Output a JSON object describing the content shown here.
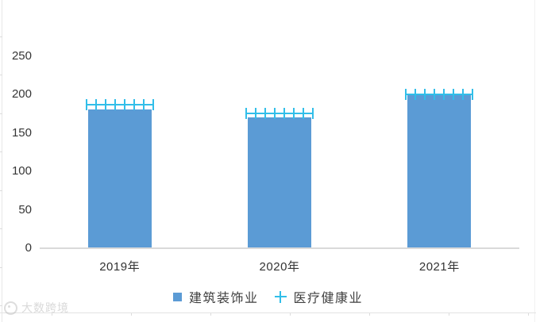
{
  "chart_data": {
    "type": "bar",
    "title": "",
    "xlabel": "",
    "ylabel": "",
    "categories": [
      "2019年",
      "2020年",
      "2021年"
    ],
    "series": [
      {
        "name": "建筑装饰业",
        "type": "bar",
        "marker": "square",
        "color": "#5b9bd5",
        "values": [
          180,
          170,
          199
        ]
      },
      {
        "name": "医疗健康业",
        "type": "scatter",
        "marker": "plus",
        "color": "#31bee9",
        "values": [
          187,
          175,
          200
        ]
      }
    ],
    "ylim": [
      0,
      250
    ],
    "yticks": [
      0,
      50,
      100,
      150,
      200,
      250
    ],
    "grid": false,
    "legend_position": "bottom"
  },
  "legend": {
    "bar_label": "建筑装饰业",
    "plus_label": "医疗健康业"
  },
  "watermark": {
    "text": "大数跨境"
  },
  "colors": {
    "bar": "#5b9bd5",
    "plus_marker": "#31bee9",
    "axis_line": "#dadada",
    "text": "#363636"
  }
}
